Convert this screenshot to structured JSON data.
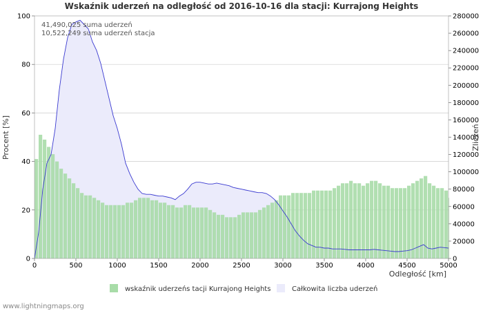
{
  "chart_data": {
    "type": "bar+area",
    "title": "Wskaźnik uderzeń na odległość od 2016-10-16 dla stacji: Kurrajong Heights",
    "xlabel": "Odległość   [km]",
    "ylabel_left": "Procent   [%]",
    "ylabel_right": "Zliczeń",
    "xlim": [
      0,
      5000
    ],
    "ylim_left": [
      0,
      100
    ],
    "ylim_right": [
      0,
      280000
    ],
    "x_ticks": [
      "0",
      "500",
      "1000",
      "1500",
      "2000",
      "2500",
      "3000",
      "3500",
      "4000",
      "4500",
      "5000"
    ],
    "y_ticks_left": [
      "0",
      "20",
      "40",
      "60",
      "80",
      "100"
    ],
    "y_ticks_right": [
      "0",
      "20000",
      "40000",
      "60000",
      "80000",
      "100000",
      "120000",
      "140000",
      "160000",
      "180000",
      "200000",
      "220000",
      "240000",
      "260000",
      "280000"
    ],
    "annotations": [
      "41,490,025 suma uderzeń",
      "10,522,249 suma uderzeń stacja"
    ],
    "legend": [
      {
        "label": "wskaźnik uderzeńs tacji Kurrajong Heights",
        "color": "#a8dca8"
      },
      {
        "label": "Całkowita liczba uderzeń",
        "color": "#ebebfb"
      }
    ],
    "series": [
      {
        "name": "wskaźnik uderzeńs tacji Kurrajong Heights",
        "axis": "left",
        "style": "bars",
        "x": [
          0,
          50,
          100,
          150,
          200,
          250,
          300,
          350,
          400,
          450,
          500,
          550,
          600,
          650,
          700,
          750,
          800,
          850,
          900,
          950,
          1000,
          1050,
          1100,
          1150,
          1200,
          1250,
          1300,
          1350,
          1400,
          1450,
          1500,
          1550,
          1600,
          1650,
          1700,
          1750,
          1800,
          1850,
          1900,
          1950,
          2000,
          2050,
          2100,
          2150,
          2200,
          2250,
          2300,
          2350,
          2400,
          2450,
          2500,
          2550,
          2600,
          2650,
          2700,
          2750,
          2800,
          2850,
          2900,
          2950,
          3000,
          3050,
          3100,
          3150,
          3200,
          3250,
          3300,
          3350,
          3400,
          3450,
          3500,
          3550,
          3600,
          3650,
          3700,
          3750,
          3800,
          3850,
          3900,
          3950,
          4000,
          4050,
          4100,
          4150,
          4200,
          4250,
          4300,
          4350,
          4400,
          4450,
          4500,
          4550,
          4600,
          4650,
          4700,
          4750,
          4800,
          4850,
          4900,
          4950,
          5000
        ],
        "values": [
          41,
          51,
          49,
          46,
          43,
          40,
          37,
          35,
          33,
          31,
          29,
          27,
          26,
          26,
          25,
          24,
          23,
          22,
          22,
          22,
          22,
          22,
          23,
          23,
          24,
          25,
          25,
          25,
          24,
          24,
          23,
          23,
          22,
          22,
          21,
          21,
          22,
          22,
          21,
          21,
          21,
          21,
          20,
          19,
          18,
          18,
          17,
          17,
          17,
          18,
          19,
          19,
          19,
          19,
          20,
          21,
          22,
          23,
          24,
          26,
          26,
          26,
          27,
          27,
          27,
          27,
          27,
          28,
          28,
          28,
          28,
          28,
          29,
          30,
          31,
          31,
          32,
          31,
          31,
          30,
          31,
          32,
          32,
          31,
          30,
          30,
          29,
          29,
          29,
          29,
          30,
          31,
          32,
          33,
          34,
          31,
          30,
          29,
          29,
          28,
          25
        ]
      },
      {
        "name": "Całkowita liczba uderzeń",
        "axis": "right",
        "style": "area",
        "x": [
          0,
          50,
          100,
          150,
          200,
          250,
          300,
          350,
          400,
          450,
          500,
          550,
          600,
          650,
          700,
          750,
          800,
          850,
          900,
          950,
          1000,
          1050,
          1100,
          1150,
          1200,
          1250,
          1300,
          1350,
          1400,
          1450,
          1500,
          1550,
          1600,
          1650,
          1700,
          1750,
          1800,
          1850,
          1900,
          1950,
          2000,
          2050,
          2100,
          2150,
          2200,
          2250,
          2300,
          2350,
          2400,
          2450,
          2500,
          2550,
          2600,
          2650,
          2700,
          2750,
          2800,
          2850,
          2900,
          2950,
          3000,
          3050,
          3100,
          3150,
          3200,
          3250,
          3300,
          3350,
          3400,
          3450,
          3500,
          3550,
          3600,
          3650,
          3700,
          3750,
          3800,
          3850,
          3900,
          3950,
          4000,
          4050,
          4100,
          4150,
          4200,
          4250,
          4300,
          4350,
          4400,
          4450,
          4500,
          4550,
          4600,
          4650,
          4700,
          4750,
          4800,
          4850,
          4900,
          4950,
          5000
        ],
        "values": [
          0,
          30000,
          80000,
          110000,
          120000,
          150000,
          195000,
          230000,
          255000,
          270000,
          273000,
          275000,
          270000,
          265000,
          250000,
          240000,
          225000,
          205000,
          185000,
          165000,
          150000,
          132000,
          110000,
          98000,
          88000,
          80000,
          75000,
          74000,
          74000,
          73000,
          72000,
          72000,
          71000,
          70000,
          68000,
          72000,
          75000,
          80000,
          86000,
          88000,
          88000,
          87000,
          86000,
          86000,
          87000,
          86000,
          85000,
          84000,
          82000,
          81000,
          80000,
          79000,
          78000,
          77000,
          76000,
          76000,
          75000,
          72000,
          68000,
          62000,
          55000,
          48000,
          40000,
          32000,
          26000,
          21000,
          17000,
          15000,
          13000,
          13000,
          12000,
          12000,
          11000,
          11000,
          11000,
          10500,
          10000,
          10000,
          10000,
          10000,
          10000,
          10000,
          10500,
          10000,
          9500,
          9000,
          8500,
          8000,
          8000,
          8500,
          9000,
          10000,
          12000,
          14000,
          16000,
          12000,
          11000,
          12000,
          13000,
          12500,
          12000
        ]
      }
    ]
  },
  "footer": {
    "credit": "www.lightningmaps.org"
  }
}
